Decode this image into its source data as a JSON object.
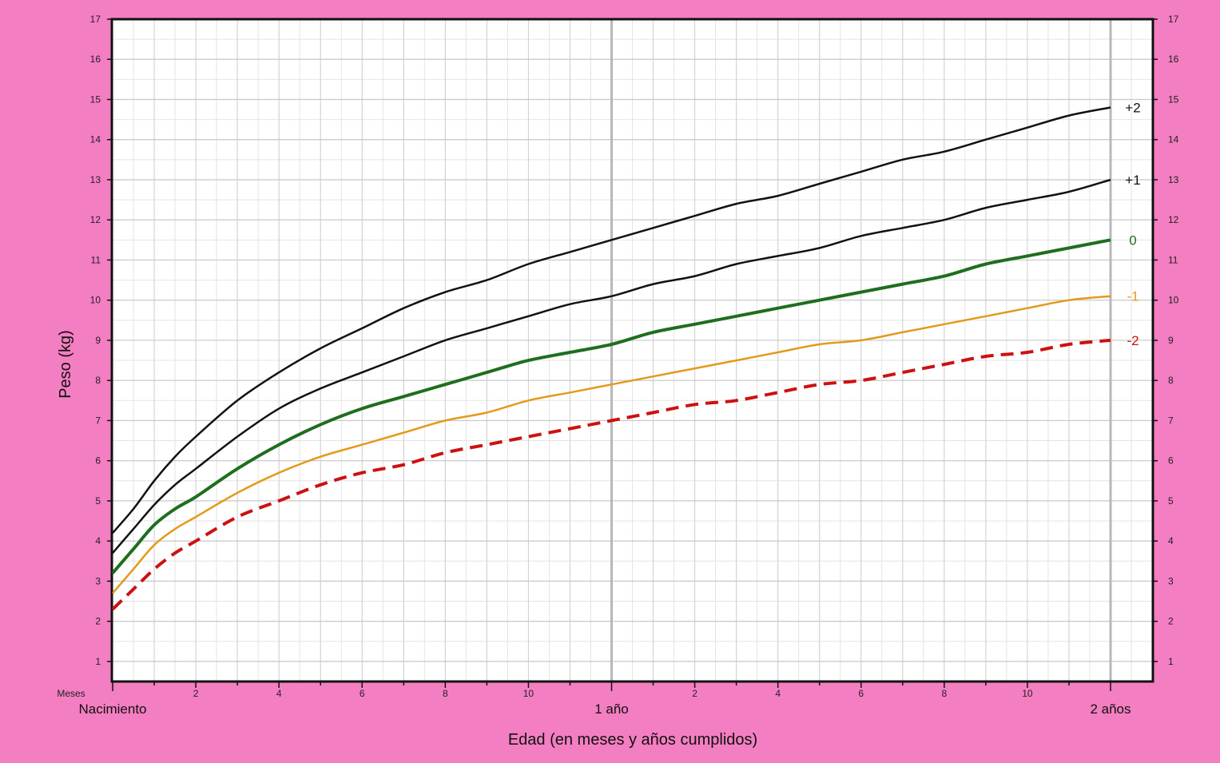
{
  "chart_data": {
    "type": "line",
    "ylabel": "Peso (kg)",
    "xlabel": "Edad (en meses y años cumplidos)",
    "x_unit_label": "Meses",
    "xlim": [
      0,
      24
    ],
    "ylim": [
      0.5,
      17
    ],
    "y_ticks": [
      1,
      2,
      3,
      4,
      5,
      6,
      7,
      8,
      9,
      10,
      11,
      12,
      13,
      14,
      15,
      16,
      17
    ],
    "x_month_ticks": [
      {
        "x": 2,
        "label": "2"
      },
      {
        "x": 4,
        "label": "4"
      },
      {
        "x": 6,
        "label": "6"
      },
      {
        "x": 8,
        "label": "8"
      },
      {
        "x": 10,
        "label": "10"
      },
      {
        "x": 14,
        "label": "2"
      },
      {
        "x": 16,
        "label": "4"
      },
      {
        "x": 18,
        "label": "6"
      },
      {
        "x": 20,
        "label": "8"
      },
      {
        "x": 22,
        "label": "10"
      }
    ],
    "x_year_labels": [
      {
        "x": 0,
        "label": "Nacimiento"
      },
      {
        "x": 12,
        "label": "1 año"
      },
      {
        "x": 24,
        "label": "2 años"
      }
    ],
    "grid": true,
    "background": "#ffffff",
    "frame_color": "#f47ec2",
    "x": [
      0,
      0.5,
      1,
      1.5,
      2,
      3,
      4,
      5,
      6,
      7,
      8,
      9,
      10,
      11,
      12,
      13,
      14,
      15,
      16,
      17,
      18,
      19,
      20,
      21,
      22,
      23,
      24
    ],
    "series": [
      {
        "name": "+2",
        "color": "#111111",
        "dash": false,
        "width": 2.5,
        "values": [
          4.2,
          4.8,
          5.5,
          6.1,
          6.6,
          7.5,
          8.2,
          8.8,
          9.3,
          9.8,
          10.2,
          10.5,
          10.9,
          11.2,
          11.5,
          11.8,
          12.1,
          12.4,
          12.6,
          12.9,
          13.2,
          13.5,
          13.7,
          14.0,
          14.3,
          14.6,
          14.8
        ]
      },
      {
        "name": "+1",
        "color": "#111111",
        "dash": false,
        "width": 2.5,
        "values": [
          3.7,
          4.3,
          4.9,
          5.4,
          5.8,
          6.6,
          7.3,
          7.8,
          8.2,
          8.6,
          9.0,
          9.3,
          9.6,
          9.9,
          10.1,
          10.4,
          10.6,
          10.9,
          11.1,
          11.3,
          11.6,
          11.8,
          12.0,
          12.3,
          12.5,
          12.7,
          13.0
        ]
      },
      {
        "name": "0",
        "color": "#1e6e1e",
        "dash": false,
        "width": 4,
        "values": [
          3.2,
          3.8,
          4.4,
          4.8,
          5.1,
          5.8,
          6.4,
          6.9,
          7.3,
          7.6,
          7.9,
          8.2,
          8.5,
          8.7,
          8.9,
          9.2,
          9.4,
          9.6,
          9.8,
          10.0,
          10.2,
          10.4,
          10.6,
          10.9,
          11.1,
          11.3,
          11.5
        ]
      },
      {
        "name": "-1",
        "color": "#e39a1a",
        "dash": false,
        "width": 2.5,
        "values": [
          2.7,
          3.3,
          3.9,
          4.3,
          4.6,
          5.2,
          5.7,
          6.1,
          6.4,
          6.7,
          7.0,
          7.2,
          7.5,
          7.7,
          7.9,
          8.1,
          8.3,
          8.5,
          8.7,
          8.9,
          9.0,
          9.2,
          9.4,
          9.6,
          9.8,
          10.0,
          10.1
        ]
      },
      {
        "name": "-2",
        "color": "#cc1111",
        "dash": true,
        "width": 4,
        "values": [
          2.3,
          2.8,
          3.3,
          3.7,
          4.0,
          4.6,
          5.0,
          5.4,
          5.7,
          5.9,
          6.2,
          6.4,
          6.6,
          6.8,
          7.0,
          7.2,
          7.4,
          7.5,
          7.7,
          7.9,
          8.0,
          8.2,
          8.4,
          8.6,
          8.7,
          8.9,
          9.0
        ]
      }
    ]
  }
}
